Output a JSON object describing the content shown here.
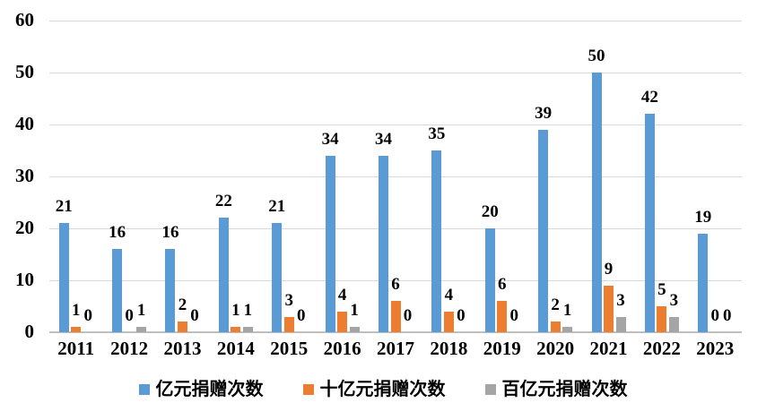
{
  "chart_data": {
    "type": "bar",
    "title": "",
    "categories": [
      "2011",
      "2012",
      "2013",
      "2014",
      "2015",
      "2016",
      "2017",
      "2018",
      "2019",
      "2020",
      "2021",
      "2022",
      "2023"
    ],
    "series": [
      {
        "name": "亿元捐赠次数",
        "color": "#5B9BD5",
        "values": [
          21,
          16,
          16,
          22,
          21,
          34,
          34,
          35,
          20,
          39,
          50,
          42,
          19
        ]
      },
      {
        "name": "十亿元捐赠次数",
        "color": "#ED7D31",
        "values": [
          1,
          0,
          2,
          1,
          3,
          4,
          6,
          4,
          6,
          2,
          9,
          5,
          0
        ]
      },
      {
        "name": "百亿元捐赠次数",
        "color": "#A5A5A5",
        "values": [
          0,
          1,
          0,
          1,
          0,
          1,
          0,
          0,
          0,
          1,
          3,
          3,
          0
        ]
      }
    ],
    "ylim": [
      0,
      60
    ],
    "yticks": [
      0,
      10,
      20,
      30,
      40,
      50,
      60
    ],
    "grid": true,
    "data_labels": true,
    "legend_position": "bottom"
  }
}
